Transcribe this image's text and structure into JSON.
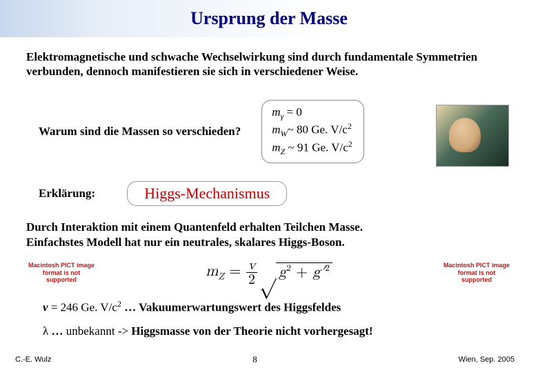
{
  "title": "Ursprung der Masse",
  "intro": "Elektromagnetische und schwache Wechselwirkung sind durch fundamentale Symmetrien verbunden, dennoch manifestieren sie sich in verschiedener Weise.",
  "question": "Warum sind die Massen so verschieden?",
  "masses": {
    "line1_prefix": "m",
    "line1_sub": "γ",
    "line1_rel": " =  0",
    "line2_prefix": "m",
    "line2_sub": "W",
    "line2_rel": "~  80 Ge. V/c",
    "line2_sup": "2",
    "line3_prefix": "m",
    "line3_sub": "Z",
    "line3_rel": "  ~  91 Ge. V/c",
    "line3_sup": "2"
  },
  "explanation_label": "Erklärung:",
  "mechanism": "Higgs-Mechanismus",
  "interaction_line1": "Durch Interaktion mit einem Quantenfeld erhalten Teilchen Masse.",
  "interaction_line2": "Einfachstes Modell hat nur ein neutrales, skalares Higgs-Boson.",
  "pict_text": "Macintosh PICT image format is not supported",
  "formula": {
    "lhs_m": "m",
    "lhs_sub": "Z",
    "eq": " = ",
    "num": "v",
    "den": "2",
    "rad_g": "g",
    "rad_sup2a": "2",
    "rad_plus": " + ",
    "rad_gp": "g′",
    "rad_sup2b": "2"
  },
  "vev": {
    "v": "v",
    "eq": " = 246 Ge. V/c",
    "sup": "2",
    "dots": " … ",
    "rest": "Vakuumerwartungswert des Higgsfeldes"
  },
  "lambda": {
    "lam": "λ",
    "dots": " … ",
    "unknown": "unbekannt",
    "arrow": " -> ",
    "rest": "Higgsmasse von der Theorie nicht vorhergesagt!"
  },
  "footer": {
    "left": "C.-E. Wulz",
    "page": "8",
    "right": "Wien, Sep. 2005"
  },
  "colors": {
    "title": "#00007a",
    "mechanism": "#c00000",
    "pict": "#b01818"
  }
}
